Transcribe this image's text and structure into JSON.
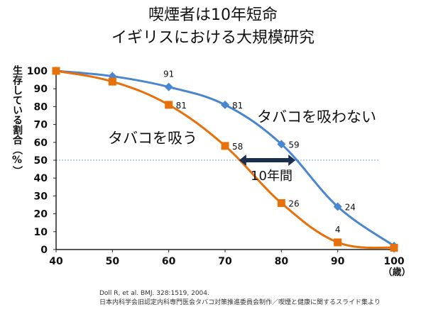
{
  "title_line1": "喫煙者は10年短命",
  "title_line2": "イギリスにおける大規模研究",
  "chart_data": {
    "type": "line",
    "ylabel": "生存している割合（%）",
    "x_unit": "（歳）",
    "xlim": [
      40,
      100
    ],
    "ylim": [
      0,
      100
    ],
    "x_ticks": [
      40,
      50,
      60,
      70,
      80,
      90,
      100
    ],
    "y_ticks": [
      0,
      10,
      20,
      30,
      40,
      50,
      60,
      70,
      80,
      90,
      100
    ],
    "x": [
      40,
      50,
      60,
      70,
      80,
      90,
      100
    ],
    "series": [
      {
        "name": "タバコを吸わない",
        "color": "#4a86d0",
        "marker": "diamond",
        "values": [
          100,
          97,
          91,
          81,
          59,
          24,
          2
        ],
        "labels": [
          "",
          "",
          "91",
          "81",
          "59",
          "24",
          ""
        ]
      },
      {
        "name": "タバコを吸う",
        "color": "#e8700a",
        "marker": "square",
        "values": [
          100,
          94,
          81,
          58,
          26,
          4,
          1
        ],
        "labels": [
          "",
          "",
          "81",
          "58",
          "26",
          "4",
          ""
        ]
      }
    ],
    "reference_line": {
      "y": 50,
      "style": "dotted",
      "color": "#6fa0d8"
    },
    "annotation": {
      "text": "10年間",
      "arrow_from_x": 72.5,
      "arrow_to_x": 82.5,
      "y": 50
    }
  },
  "source_line1": "Doll R, et al. BMJ. 328:1519, 2004.",
  "source_line2": "日本内科学会旧認定内科専門医会タバコ対策推進委員会制作／喫煙と健康に関するスライド集より"
}
